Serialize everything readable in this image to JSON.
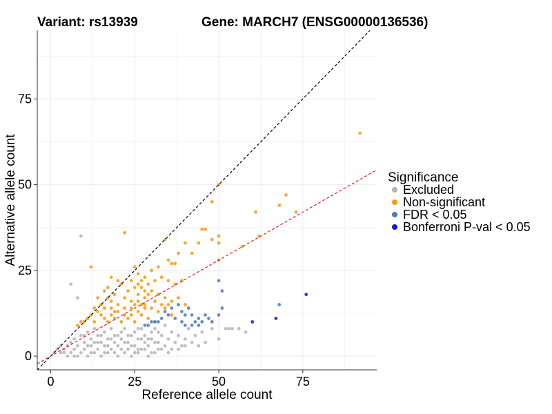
{
  "chart_data": {
    "type": "scatter",
    "title_left": "Variant: rs13939",
    "title_right": "Gene: MARCH7 (ENSG00000136536)",
    "xlabel": "Reference allele count",
    "ylabel": "Alternative allele count",
    "xlim": [
      -4,
      97
    ],
    "ylim": [
      -4,
      95
    ],
    "xticks": [
      0,
      25,
      50,
      75
    ],
    "yticks": [
      0,
      25,
      50,
      75
    ],
    "grid": true,
    "legend": {
      "title": "Significance",
      "position": "right",
      "items": [
        {
          "label": "Excluded",
          "color": "#b4b4b4"
        },
        {
          "label": "Non-significant",
          "color": "#f39a12"
        },
        {
          "label": "FDR < 0.05",
          "color": "#4a7ab8"
        },
        {
          "label": "Bonferroni P-val < 0.05",
          "color": "#1414e6"
        }
      ]
    },
    "reference_lines": [
      {
        "name": "identity",
        "slope": 1.0,
        "intercept": 0,
        "color": "#000000",
        "dash": true
      },
      {
        "name": "fitted",
        "slope": 0.56,
        "intercept": 0,
        "color": "#e41a1c",
        "dash": true
      }
    ],
    "series": [
      {
        "name": "Excluded",
        "color": "#b4b4b4",
        "points": [
          [
            1,
            1
          ],
          [
            2,
            2
          ],
          [
            3,
            1
          ],
          [
            4,
            2
          ],
          [
            5,
            0
          ],
          [
            5,
            3
          ],
          [
            6,
            1
          ],
          [
            6,
            4
          ],
          [
            7,
            2
          ],
          [
            7,
            5
          ],
          [
            8,
            0
          ],
          [
            8,
            3
          ],
          [
            9,
            1
          ],
          [
            9,
            6
          ],
          [
            10,
            2
          ],
          [
            10,
            4
          ],
          [
            11,
            0
          ],
          [
            11,
            7
          ],
          [
            12,
            3
          ],
          [
            12,
            5
          ],
          [
            13,
            1
          ],
          [
            13,
            8
          ],
          [
            14,
            2
          ],
          [
            14,
            6
          ],
          [
            15,
            0
          ],
          [
            15,
            4
          ],
          [
            16,
            3
          ],
          [
            16,
            7
          ],
          [
            17,
            1
          ],
          [
            17,
            5
          ],
          [
            18,
            2
          ],
          [
            18,
            8
          ],
          [
            19,
            4
          ],
          [
            19,
            6
          ],
          [
            20,
            0
          ],
          [
            20,
            3
          ],
          [
            21,
            5
          ],
          [
            21,
            7
          ],
          [
            22,
            1
          ],
          [
            22,
            8
          ],
          [
            23,
            2
          ],
          [
            23,
            4
          ],
          [
            24,
            6
          ],
          [
            24,
            0
          ],
          [
            25,
            3
          ],
          [
            25,
            7
          ],
          [
            26,
            1
          ],
          [
            26,
            5
          ],
          [
            27,
            2
          ],
          [
            27,
            8
          ],
          [
            28,
            4
          ],
          [
            28,
            6
          ],
          [
            29,
            0
          ],
          [
            29,
            3
          ],
          [
            30,
            5
          ],
          [
            30,
            7
          ],
          [
            31,
            1
          ],
          [
            31,
            8
          ],
          [
            32,
            2
          ],
          [
            32,
            4
          ],
          [
            33,
            6
          ],
          [
            34,
            3
          ],
          [
            34,
            9
          ],
          [
            35,
            5
          ],
          [
            36,
            2
          ],
          [
            36,
            7
          ],
          [
            37,
            4
          ],
          [
            38,
            6
          ],
          [
            39,
            3
          ],
          [
            40,
            5
          ],
          [
            41,
            8
          ],
          [
            42,
            4
          ],
          [
            43,
            6
          ],
          [
            44,
            3
          ],
          [
            45,
            7
          ],
          [
            46,
            4
          ],
          [
            48,
            8
          ],
          [
            50,
            5
          ],
          [
            52,
            8
          ],
          [
            53,
            8
          ],
          [
            54,
            8
          ],
          [
            56,
            8
          ],
          [
            58,
            7
          ],
          [
            6,
            21
          ],
          [
            8,
            17
          ],
          [
            9,
            35
          ],
          [
            3,
            3
          ],
          [
            4,
            1
          ],
          [
            7,
            0
          ],
          [
            10,
            6
          ],
          [
            12,
            1
          ],
          [
            14,
            4
          ],
          [
            16,
            1
          ],
          [
            18,
            5
          ],
          [
            20,
            6
          ],
          [
            22,
            4
          ],
          [
            24,
            3
          ],
          [
            26,
            8
          ],
          [
            28,
            2
          ],
          [
            30,
            1
          ],
          [
            32,
            7
          ],
          [
            35,
            1
          ],
          [
            38,
            2
          ],
          [
            40,
            3
          ],
          [
            26,
            2
          ],
          [
            29,
            5
          ],
          [
            15,
            6
          ],
          [
            17,
            3
          ],
          [
            19,
            1
          ],
          [
            21,
            2
          ],
          [
            23,
            6
          ],
          [
            25,
            1
          ],
          [
            27,
            5
          ],
          [
            31,
            4
          ],
          [
            33,
            2
          ],
          [
            11,
            3
          ],
          [
            13,
            4
          ]
        ]
      },
      {
        "name": "Non-significant",
        "color": "#f39a12",
        "points": [
          [
            92,
            65
          ],
          [
            50,
            50
          ],
          [
            70,
            47
          ],
          [
            68,
            44
          ],
          [
            48,
            45
          ],
          [
            61,
            42
          ],
          [
            73,
            42
          ],
          [
            62,
            35
          ],
          [
            57,
            32
          ],
          [
            45,
            37
          ],
          [
            46,
            37
          ],
          [
            44,
            33
          ],
          [
            50,
            33
          ],
          [
            50,
            28
          ],
          [
            50,
            35
          ],
          [
            48,
            34
          ],
          [
            40,
            33
          ],
          [
            38,
            30
          ],
          [
            42,
            30
          ],
          [
            36,
            27
          ],
          [
            37,
            27
          ],
          [
            32,
            26
          ],
          [
            22,
            36
          ],
          [
            34,
            34
          ],
          [
            35,
            28
          ],
          [
            12,
            26
          ],
          [
            18,
            23
          ],
          [
            20,
            22
          ],
          [
            25,
            26
          ],
          [
            26,
            24
          ],
          [
            28,
            23
          ],
          [
            30,
            25
          ],
          [
            16,
            19
          ],
          [
            17,
            20
          ],
          [
            19,
            18
          ],
          [
            21,
            21
          ],
          [
            23,
            19
          ],
          [
            24,
            22
          ],
          [
            27,
            20
          ],
          [
            29,
            21
          ],
          [
            31,
            22
          ],
          [
            33,
            23
          ],
          [
            35,
            22
          ],
          [
            37,
            21
          ],
          [
            39,
            22
          ],
          [
            14,
            17
          ],
          [
            15,
            15
          ],
          [
            16,
            14
          ],
          [
            18,
            16
          ],
          [
            20,
            15
          ],
          [
            22,
            17
          ],
          [
            24,
            16
          ],
          [
            26,
            18
          ],
          [
            28,
            17
          ],
          [
            30,
            19
          ],
          [
            32,
            18
          ],
          [
            34,
            17
          ],
          [
            36,
            16
          ],
          [
            38,
            17
          ],
          [
            40,
            15
          ],
          [
            12,
            12
          ],
          [
            13,
            10
          ],
          [
            14,
            13
          ],
          [
            16,
            11
          ],
          [
            18,
            12
          ],
          [
            20,
            13
          ],
          [
            22,
            12
          ],
          [
            24,
            14
          ],
          [
            26,
            13
          ],
          [
            28,
            15
          ],
          [
            30,
            14
          ],
          [
            32,
            13
          ],
          [
            34,
            14
          ],
          [
            36,
            12
          ],
          [
            10,
            10
          ],
          [
            11,
            11
          ],
          [
            13,
            14
          ],
          [
            15,
            12
          ],
          [
            17,
            10
          ],
          [
            19,
            11
          ],
          [
            21,
            10
          ],
          [
            23,
            11
          ],
          [
            25,
            10
          ],
          [
            27,
            12
          ],
          [
            29,
            11
          ],
          [
            31,
            10
          ],
          [
            8,
            9
          ],
          [
            9,
            10
          ],
          [
            25,
            20
          ],
          [
            26,
            21
          ],
          [
            27,
            22
          ],
          [
            28,
            19
          ],
          [
            29,
            18
          ],
          [
            31,
            16
          ],
          [
            33,
            15
          ],
          [
            35,
            15
          ],
          [
            17,
            17
          ],
          [
            18,
            14
          ],
          [
            19,
            13
          ],
          [
            22,
            14
          ],
          [
            24,
            12
          ],
          [
            25,
            15
          ],
          [
            26,
            16
          ],
          [
            27,
            15
          ],
          [
            28,
            14
          ]
        ]
      },
      {
        "name": "FDR < 0.05",
        "color": "#4a7ab8",
        "points": [
          [
            68,
            15
          ],
          [
            50,
            22
          ],
          [
            51,
            19
          ],
          [
            51,
            14
          ],
          [
            50,
            12
          ],
          [
            41,
            14
          ],
          [
            42,
            12
          ],
          [
            43,
            10
          ],
          [
            44,
            11
          ],
          [
            46,
            12
          ],
          [
            47,
            11
          ],
          [
            48,
            10
          ],
          [
            45,
            10
          ],
          [
            38,
            15
          ],
          [
            39,
            13
          ],
          [
            40,
            12
          ],
          [
            37,
            11
          ],
          [
            36,
            14
          ],
          [
            35,
            12
          ],
          [
            34,
            13
          ],
          [
            33,
            11
          ],
          [
            32,
            10
          ],
          [
            31,
            10
          ],
          [
            30,
            10
          ],
          [
            29,
            9
          ],
          [
            28,
            9
          ],
          [
            39,
            10
          ],
          [
            40,
            9
          ],
          [
            42,
            9
          ],
          [
            44,
            9
          ]
        ]
      },
      {
        "name": "Bonferroni P-val < 0.05",
        "color": "#1414e6",
        "points": [
          [
            76,
            18
          ],
          [
            67,
            11
          ],
          [
            60,
            10
          ]
        ]
      }
    ]
  }
}
